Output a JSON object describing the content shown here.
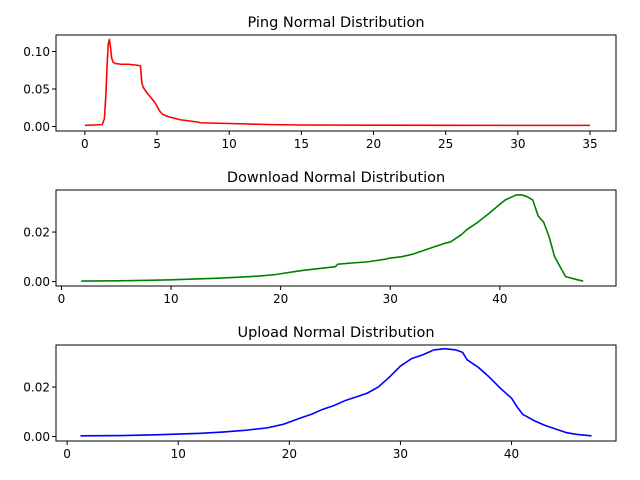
{
  "chart_data": [
    {
      "type": "line",
      "title": "Ping Normal Distribution",
      "xlabel": "",
      "ylabel": "",
      "xlim": [
        -2.0,
        36.8
      ],
      "ylim": [
        -0.006,
        0.122
      ],
      "xticks": [
        0,
        5,
        10,
        15,
        20,
        25,
        30,
        35
      ],
      "yticks": [
        0.0,
        0.05,
        0.1
      ],
      "ytick_labels": [
        "0.00",
        "0.05",
        "0.10"
      ],
      "grid": false,
      "series": [
        {
          "color": "#ff0000",
          "x": [
            0,
            1.2,
            1.35,
            1.45,
            1.55,
            1.62,
            1.7,
            1.78,
            1.85,
            1.95,
            2.1,
            2.5,
            3.0,
            3.5,
            3.85,
            3.95,
            4.05,
            4.3,
            4.6,
            4.85,
            5.0,
            5.2,
            5.4,
            5.8,
            6.2,
            6.6,
            7.0,
            7.4,
            7.8,
            8.0,
            9.0,
            10.0,
            11.0,
            12.0,
            13.0,
            15.0,
            20.0,
            25.0,
            30.0,
            35.0
          ],
          "y": [
            0.0015,
            0.0025,
            0.01,
            0.04,
            0.085,
            0.11,
            0.116,
            0.105,
            0.092,
            0.086,
            0.084,
            0.083,
            0.083,
            0.082,
            0.081,
            0.058,
            0.052,
            0.045,
            0.038,
            0.032,
            0.027,
            0.02,
            0.016,
            0.013,
            0.011,
            0.009,
            0.008,
            0.007,
            0.006,
            0.005,
            0.0045,
            0.004,
            0.0035,
            0.003,
            0.0025,
            0.002,
            0.0018,
            0.0016,
            0.0015,
            0.0015
          ]
        }
      ]
    },
    {
      "type": "line",
      "title": "Download Normal Distribution",
      "xlabel": "",
      "ylabel": "",
      "xlim": [
        -0.5,
        50.6
      ],
      "ylim": [
        -0.0018,
        0.037
      ],
      "xticks": [
        0,
        10,
        20,
        30,
        40
      ],
      "yticks": [
        0.0,
        0.02
      ],
      "ytick_labels": [
        "0.00",
        "0.02"
      ],
      "grid": false,
      "series": [
        {
          "color": "#008000",
          "x": [
            1.8,
            5,
            8,
            10,
            12,
            14,
            16,
            18,
            19.5,
            20.5,
            22,
            24,
            25,
            25.2,
            26.5,
            28,
            29.5,
            30,
            31,
            32,
            33,
            34,
            35,
            35.5,
            36.5,
            37,
            38,
            39,
            39.8,
            40.5,
            41,
            41.5,
            42,
            42.5,
            43,
            43.5,
            44,
            44.5,
            45,
            45.5,
            46,
            47,
            47.6
          ],
          "y": [
            0.0002,
            0.0003,
            0.0005,
            0.0007,
            0.001,
            0.0013,
            0.0017,
            0.0022,
            0.0028,
            0.0035,
            0.0045,
            0.0055,
            0.006,
            0.007,
            0.0075,
            0.008,
            0.009,
            0.0095,
            0.01,
            0.011,
            0.0125,
            0.014,
            0.0155,
            0.016,
            0.019,
            0.021,
            0.024,
            0.0275,
            0.0305,
            0.033,
            0.034,
            0.035,
            0.035,
            0.0343,
            0.033,
            0.0265,
            0.024,
            0.018,
            0.01,
            0.006,
            0.002,
            0.0008,
            0.0002
          ]
        }
      ]
    },
    {
      "type": "line",
      "title": "Upload Normal Distribution",
      "xlabel": "",
      "ylabel": "",
      "xlim": [
        -1.0,
        49.4
      ],
      "ylim": [
        -0.0018,
        0.037
      ],
      "xticks": [
        0,
        10,
        20,
        30,
        40
      ],
      "yticks": [
        0.0,
        0.02
      ],
      "ytick_labels": [
        "0.00",
        "0.02"
      ],
      "grid": false,
      "series": [
        {
          "color": "#0000ff",
          "x": [
            1.2,
            5,
            8,
            10,
            12,
            14,
            16,
            18,
            19.5,
            21,
            22,
            23,
            24,
            25,
            26,
            27,
            28,
            29,
            30,
            31,
            32,
            33,
            34,
            35,
            35.6,
            36,
            37,
            38,
            39,
            40,
            40.5,
            41,
            42,
            43,
            44,
            45,
            46,
            47.2
          ],
          "y": [
            0.0003,
            0.0004,
            0.0007,
            0.001,
            0.0013,
            0.0018,
            0.0025,
            0.0035,
            0.005,
            0.0075,
            0.009,
            0.011,
            0.0125,
            0.0145,
            0.016,
            0.0175,
            0.02,
            0.024,
            0.0285,
            0.0315,
            0.033,
            0.035,
            0.0355,
            0.035,
            0.034,
            0.031,
            0.028,
            0.024,
            0.0195,
            0.0155,
            0.012,
            0.009,
            0.0065,
            0.0045,
            0.003,
            0.0015,
            0.0008,
            0.0003
          ]
        }
      ]
    }
  ]
}
